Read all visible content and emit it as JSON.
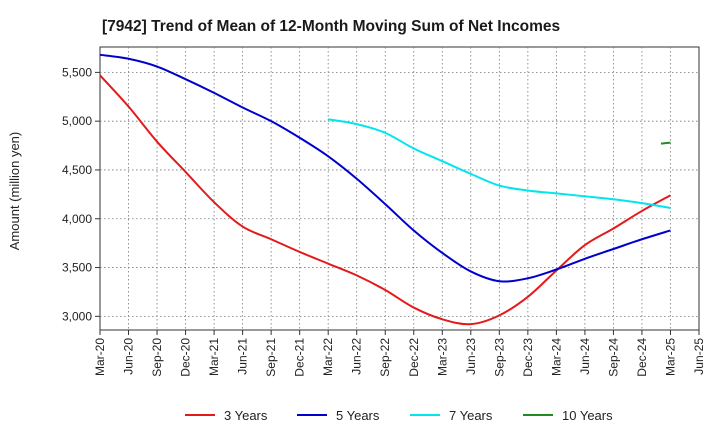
{
  "chart_data": {
    "type": "line",
    "title": "[7942]  Trend of Mean of 12-Month Moving Sum of Net Incomes",
    "xlabel": "",
    "ylabel": "Amount (million yen)",
    "x_ticks": [
      "Mar-20",
      "Jun-20",
      "Sep-20",
      "Dec-20",
      "Mar-21",
      "Jun-21",
      "Sep-21",
      "Dec-21",
      "Mar-22",
      "Jun-22",
      "Sep-22",
      "Dec-22",
      "Mar-23",
      "Jun-23",
      "Sep-23",
      "Dec-23",
      "Mar-24",
      "Jun-24",
      "Sep-24",
      "Dec-24",
      "Mar-25",
      "Jun-25"
    ],
    "y_ticks": [
      3000,
      3500,
      4000,
      4500,
      5000,
      5500
    ],
    "y_tick_labels": [
      "3,000",
      "3,500",
      "4,000",
      "4,500",
      "5,000",
      "5,500"
    ],
    "ylim": [
      2860,
      5760
    ],
    "grid": true,
    "legend_position": "bottom",
    "series": [
      {
        "name": "3 Years",
        "color": "#e31a1c",
        "x": [
          "Mar-20",
          "Jun-20",
          "Sep-20",
          "Dec-20",
          "Mar-21",
          "Jun-21",
          "Sep-21",
          "Dec-21",
          "Mar-22",
          "Jun-22",
          "Sep-22",
          "Dec-22",
          "Mar-23",
          "Jun-23",
          "Sep-23",
          "Dec-23",
          "Mar-24",
          "Jun-24",
          "Sep-24",
          "Dec-24",
          "Mar-25"
        ],
        "values": [
          5470,
          5150,
          4790,
          4480,
          4170,
          3920,
          3790,
          3660,
          3540,
          3420,
          3270,
          3090,
          2970,
          2920,
          3010,
          3200,
          3470,
          3730,
          3900,
          4080,
          4240
        ]
      },
      {
        "name": "5 Years",
        "color": "#0000cc",
        "x": [
          "Mar-20",
          "Jun-20",
          "Sep-20",
          "Dec-20",
          "Mar-21",
          "Jun-21",
          "Sep-21",
          "Dec-21",
          "Mar-22",
          "Jun-22",
          "Sep-22",
          "Dec-22",
          "Mar-23",
          "Jun-23",
          "Sep-23",
          "Dec-23",
          "Mar-24",
          "Jun-24",
          "Sep-24",
          "Dec-24",
          "Mar-25"
        ],
        "values": [
          5680,
          5640,
          5560,
          5430,
          5290,
          5140,
          5000,
          4830,
          4640,
          4410,
          4150,
          3880,
          3650,
          3460,
          3360,
          3390,
          3480,
          3590,
          3690,
          3790,
          3880
        ]
      },
      {
        "name": "7 Years",
        "color": "#00e5ee",
        "x": [
          "Mar-22",
          "Jun-22",
          "Sep-22",
          "Dec-22",
          "Mar-23",
          "Jun-23",
          "Sep-23",
          "Dec-23",
          "Mar-24",
          "Jun-24",
          "Sep-24",
          "Dec-24",
          "Mar-25"
        ],
        "values": [
          5020,
          4970,
          4880,
          4720,
          4590,
          4460,
          4340,
          4290,
          4260,
          4230,
          4200,
          4160,
          4110
        ]
      },
      {
        "name": "10 Years",
        "color": "#228b22",
        "x": [
          "Feb-25",
          "Mar-25"
        ],
        "values": [
          4770,
          4780
        ]
      }
    ]
  }
}
